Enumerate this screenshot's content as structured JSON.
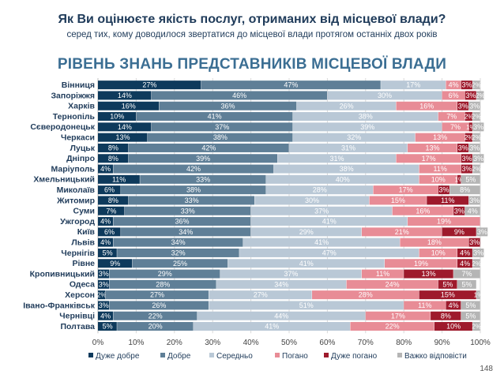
{
  "header": {
    "question": "Як Ви оцінюєте якість послуг, отриманих від місцевої влади?",
    "subquestion": "серед тих, кому доводилося звертатися до місцевої влади протягом останніх двох років",
    "page_number": "148"
  },
  "chart_data": {
    "type": "bar",
    "orientation": "horizontal",
    "stacked": true,
    "title": "РІВЕНЬ ЗНАНЬ ПРЕДСТАВНИКІВ МІСЦЕВОЇ ВЛАДИ",
    "xlabel": "",
    "ylabel": "",
    "xlim": [
      0,
      100
    ],
    "x_ticks": [
      "0%",
      "10%",
      "20%",
      "30%",
      "40%",
      "50%",
      "60%",
      "70%",
      "80%",
      "90%",
      "100%"
    ],
    "grid": true,
    "legend_position": "bottom",
    "categories": [
      "Вінниця",
      "Запоріжжя",
      "Харків",
      "Тернопіль",
      "Сєверодонецьк",
      "Черкаси",
      "Луцьк",
      "Дніпро",
      "Маріуполь",
      "Хмельницький",
      "Миколаїв",
      "Житомир",
      "Суми",
      "Ужгород",
      "Київ",
      "Львів",
      "Чернігів",
      "Рівне",
      "Кропивницький",
      "Одеса",
      "Херсон",
      "Івано-Франківськ",
      "Чернівці",
      "Полтава"
    ],
    "series": [
      {
        "name": "Дуже добре",
        "color": "#0e3a5c",
        "label_color": "#ffffff",
        "values": [
          27,
          14,
          16,
          10,
          14,
          13,
          8,
          8,
          4,
          11,
          6,
          8,
          7,
          4,
          6,
          4,
          5,
          9,
          3,
          3,
          2,
          3,
          4,
          5
        ]
      },
      {
        "name": "Добре",
        "color": "#5f7f97",
        "label_color": "#ffffff",
        "values": [
          47,
          46,
          36,
          41,
          37,
          38,
          42,
          39,
          42,
          33,
          38,
          33,
          33,
          36,
          34,
          34,
          32,
          25,
          29,
          28,
          27,
          26,
          22,
          20
        ]
      },
      {
        "name": "Середньо",
        "color": "#b9c8d6",
        "label_color": "#ffffff",
        "values": [
          17,
          30,
          26,
          38,
          39,
          32,
          31,
          31,
          38,
          40,
          28,
          30,
          37,
          41,
          29,
          41,
          47,
          41,
          37,
          34,
          27,
          51,
          44,
          41
        ]
      },
      {
        "name": "Погано",
        "color": "#e88c96",
        "label_color": "#ffffff",
        "values": [
          4,
          6,
          16,
          7,
          7,
          13,
          13,
          17,
          11,
          10,
          17,
          15,
          16,
          19,
          21,
          18,
          10,
          19,
          11,
          24,
          28,
          11,
          17,
          22
        ]
      },
      {
        "name": "Дуже погано",
        "color": "#9e1a2c",
        "label_color": "#ffffff",
        "values": [
          3,
          3,
          3,
          2,
          1,
          2,
          3,
          3,
          3,
          1,
          3,
          11,
          3,
          0,
          9,
          3,
          4,
          4,
          13,
          5,
          15,
          4,
          8,
          10
        ]
      },
      {
        "name": "Важко відповісти",
        "color": "#b5b5b5",
        "label_color": "#ffffff",
        "values": [
          2,
          2,
          3,
          2,
          3,
          2,
          3,
          3,
          2,
          5,
          8,
          3,
          4,
          0,
          3,
          0,
          3,
          2,
          7,
          5,
          1,
          5,
          5,
          2
        ]
      }
    ]
  }
}
